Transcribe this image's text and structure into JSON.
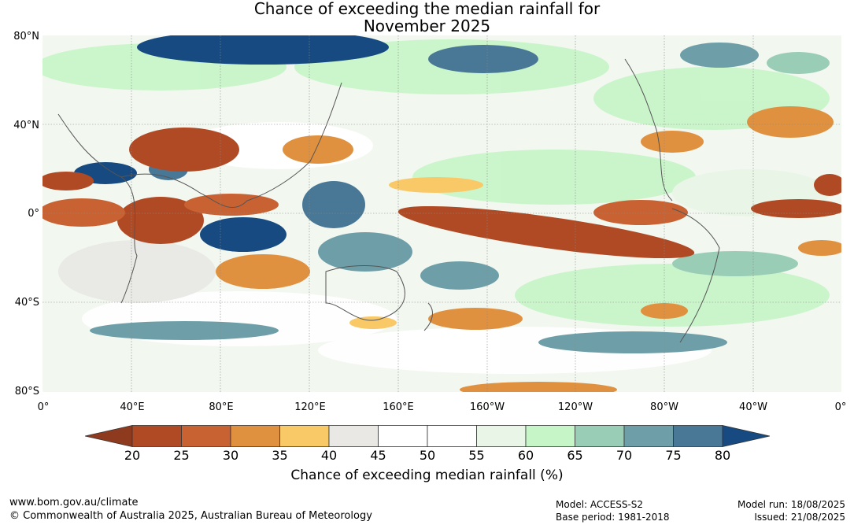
{
  "title_line1": "Chance of exceeding the median rainfall for",
  "title_line2": "November 2025",
  "lat_labels": [
    "80°N",
    "40°N",
    "0°",
    "40°S",
    "80°S"
  ],
  "lon_labels": [
    "0°",
    "40°E",
    "80°E",
    "120°E",
    "160°E",
    "160°W",
    "120°W",
    "80°W",
    "40°W",
    "0°"
  ],
  "colorbar": {
    "labels": [
      "20",
      "25",
      "30",
      "35",
      "40",
      "45",
      "50",
      "55",
      "60",
      "65",
      "70",
      "75",
      "80"
    ],
    "colors": [
      "#8e3a1f",
      "#b04a25",
      "#c86232",
      "#e0913f",
      "#f9c867",
      "#e9e8e4",
      "#ffffff",
      "#ffffff",
      "#e9f5e6",
      "#c6f5c7",
      "#9acdb6",
      "#6e9fa9",
      "#497897",
      "#164a80"
    ],
    "title": "Chance of exceeding median rainfall (%)"
  },
  "footer": {
    "website": "www.bom.gov.au/climate",
    "copyright": "© Commonwealth of Australia 2025, Australian Bureau of Meteorology",
    "model": "Model: ACCESS-S2",
    "base_period": "Base period: 1981-2018",
    "model_run": "Model run: 18/08/2025",
    "issued": "Issued: 21/08/2025"
  }
}
